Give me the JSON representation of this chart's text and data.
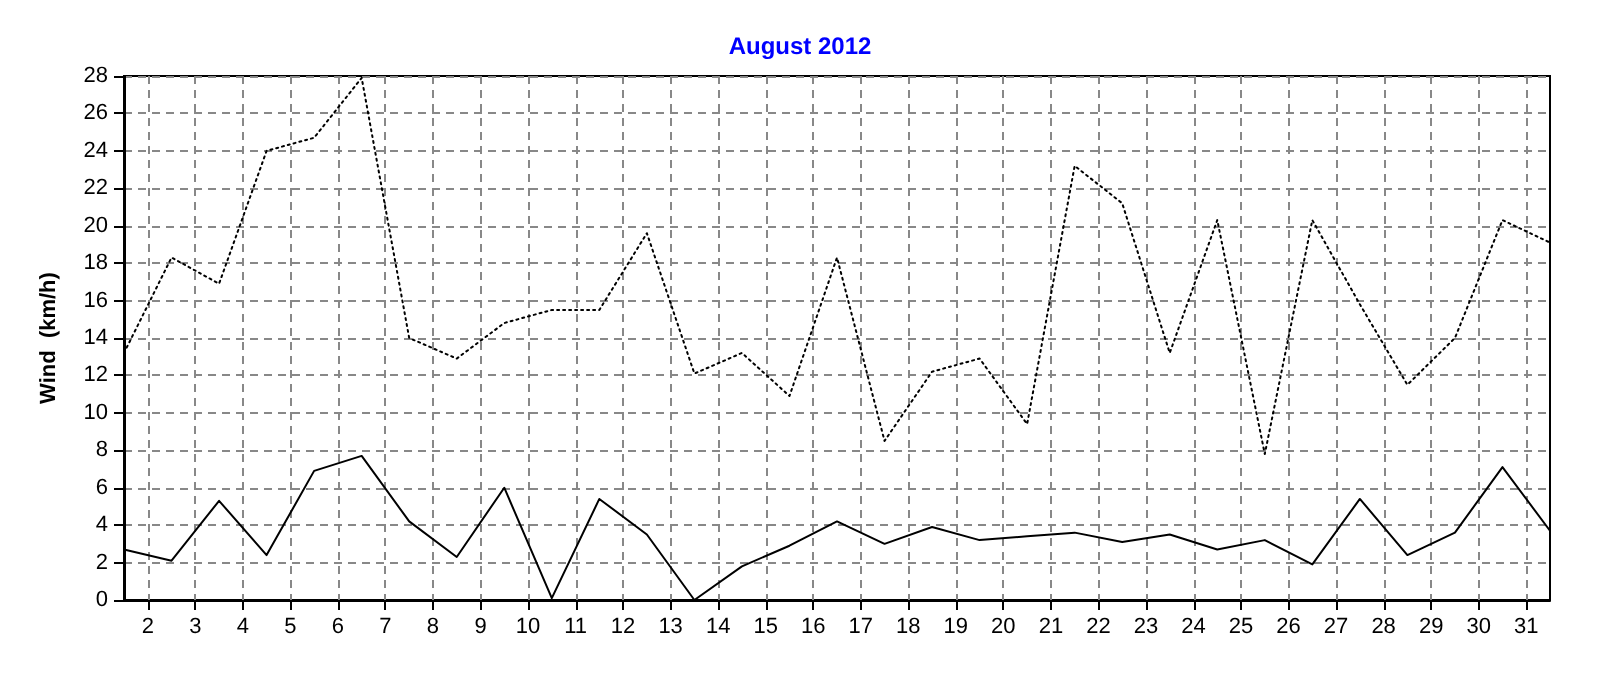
{
  "chart_data": {
    "type": "line",
    "title": "August 2012",
    "ylabel": "Wind  (km/h)",
    "x": [
      1.5,
      2.5,
      3.5,
      4.5,
      5.5,
      6.5,
      7.5,
      8.5,
      9.5,
      10.5,
      11.5,
      12.5,
      13.5,
      14.5,
      15.5,
      16.5,
      17.5,
      18.5,
      19.5,
      20.5,
      21.5,
      22.5,
      23.5,
      24.5,
      25.5,
      26.5,
      27.5,
      28.5,
      29.5,
      30.5,
      31.5
    ],
    "series": [
      {
        "color": "#000000",
        "line_style": "dotted",
        "values": [
          13.2,
          18.3,
          16.9,
          24.0,
          24.7,
          27.9,
          14.0,
          12.9,
          14.8,
          15.5,
          15.5,
          19.6,
          12.1,
          13.2,
          10.9,
          18.3,
          8.5,
          12.2,
          12.9,
          9.4,
          23.2,
          21.2,
          13.2,
          20.3,
          7.8,
          20.3,
          15.8,
          11.5,
          14.0,
          20.3,
          19.1
        ]
      },
      {
        "color": "#000000",
        "line_style": "solid",
        "values": [
          2.7,
          2.1,
          5.3,
          2.4,
          6.9,
          7.7,
          4.2,
          2.3,
          6.0,
          0.1,
          5.4,
          3.5,
          0,
          1.8,
          2.9,
          4.2,
          3.0,
          3.9,
          3.2,
          3.4,
          3.6,
          3.1,
          3.5,
          2.7,
          3.2,
          1.9,
          5.4,
          2.4,
          3.6,
          7.1,
          3.7
        ]
      }
    ],
    "xlim": [
      1.5,
      31.5
    ],
    "xticks": [
      2,
      3,
      4,
      5,
      6,
      7,
      8,
      9,
      10,
      11,
      12,
      13,
      14,
      15,
      16,
      17,
      18,
      19,
      20,
      21,
      22,
      23,
      24,
      25,
      26,
      27,
      28,
      29,
      30,
      31
    ],
    "ylim": [
      0,
      28
    ],
    "yticks": [
      0,
      2,
      4,
      6,
      8,
      10,
      12,
      14,
      16,
      18,
      20,
      22,
      24,
      26,
      28
    ],
    "grid": true,
    "marker": "none"
  }
}
